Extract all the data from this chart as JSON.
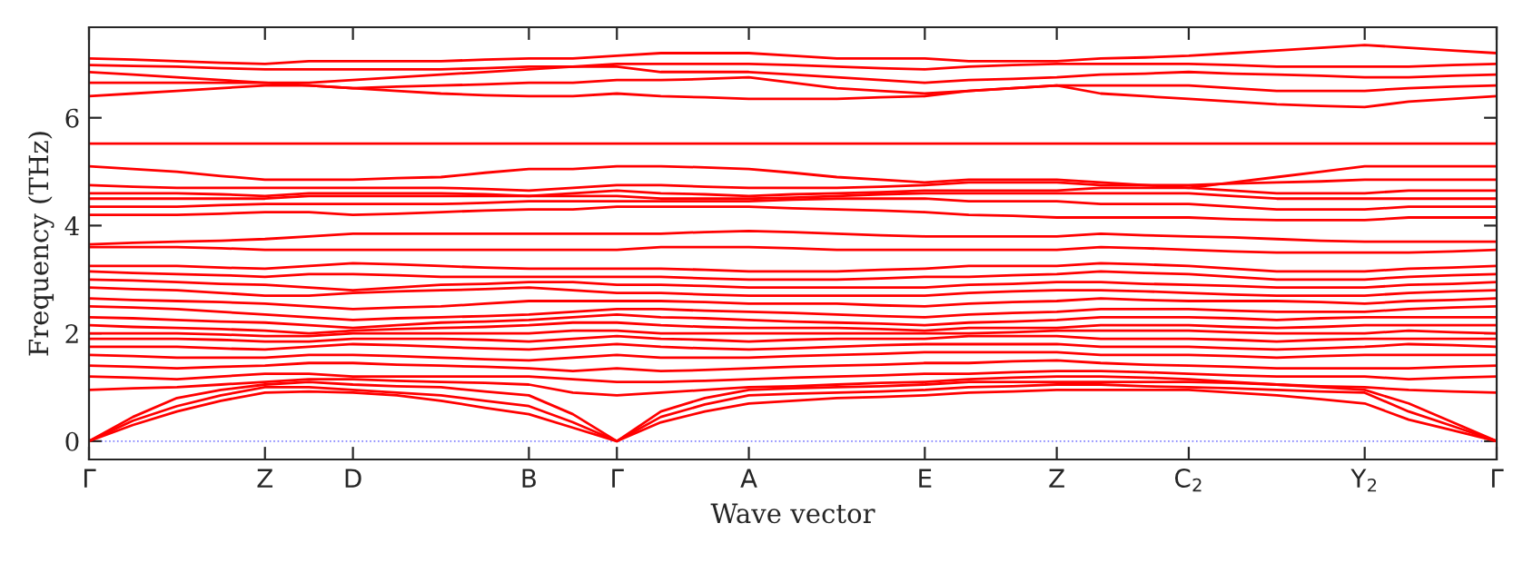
{
  "chart_data": {
    "type": "line",
    "xlabel": "Wave vector",
    "ylabel": "Frequency (THz)",
    "categories": [
      "Γ",
      null,
      null,
      null,
      "Z",
      null,
      "D",
      null,
      null,
      null,
      "B",
      null,
      "Γ",
      null,
      null,
      "A",
      null,
      null,
      null,
      "E",
      null,
      null,
      "Z",
      null,
      null,
      "C$_{2}$",
      null,
      null,
      null,
      "Y$_{2}$",
      null,
      null,
      "Γ"
    ],
    "ylim": [
      -0.34,
      7.68
    ],
    "yticks": [
      0,
      2,
      4,
      6
    ],
    "grid": false,
    "legend": false,
    "marker": "none",
    "line_style": "solid",
    "ref_lines": [
      {
        "axis": "y",
        "value": 0,
        "color": "#8080ff",
        "line_style": "dotted"
      }
    ],
    "series": [
      {
        "color": "#ff0000",
        "values": [
          0,
          0.3,
          0.55,
          0.75,
          0.9,
          0.92,
          0.9,
          0.85,
          0.75,
          0.62,
          0.5,
          0.25,
          0,
          0.35,
          0.55,
          0.7,
          0.75,
          0.8,
          0.82,
          0.85,
          0.9,
          0.92,
          0.95,
          0.95,
          0.95,
          0.95,
          0.9,
          0.85,
          0.78,
          0.7,
          0.4,
          0.2,
          0
        ]
      },
      {
        "color": "#ff0000",
        "values": [
          0,
          0.38,
          0.65,
          0.85,
          1.0,
          1.0,
          0.95,
          0.9,
          0.85,
          0.75,
          0.65,
          0.35,
          0,
          0.45,
          0.68,
          0.85,
          0.88,
          0.9,
          0.92,
          0.95,
          1.0,
          1.02,
          1.05,
          1.05,
          1.02,
          1.0,
          0.98,
          0.95,
          0.92,
          0.9,
          0.55,
          0.28,
          0
        ]
      },
      {
        "color": "#ff0000",
        "values": [
          0,
          0.45,
          0.8,
          0.95,
          1.05,
          1.1,
          1.05,
          1.02,
          1.0,
          0.92,
          0.85,
          0.5,
          0,
          0.55,
          0.8,
          0.95,
          0.98,
          1.0,
          1.02,
          1.05,
          1.1,
          1.1,
          1.1,
          1.1,
          1.1,
          1.1,
          1.08,
          1.05,
          1.0,
          0.95,
          0.7,
          0.35,
          0
        ]
      },
      {
        "color": "#ff0000",
        "values": [
          0.95,
          0.98,
          1.0,
          1.05,
          1.1,
          1.15,
          1.15,
          1.12,
          1.1,
          1.08,
          1.05,
          0.9,
          0.85,
          0.9,
          0.95,
          1.0,
          1.02,
          1.05,
          1.08,
          1.1,
          1.15,
          1.18,
          1.2,
          1.2,
          1.18,
          1.15,
          1.1,
          1.05,
          1.02,
          1.0,
          0.95,
          0.92,
          0.9
        ]
      },
      {
        "color": "#ff0000",
        "values": [
          1.2,
          1.18,
          1.15,
          1.2,
          1.25,
          1.25,
          1.2,
          1.2,
          1.2,
          1.2,
          1.2,
          1.15,
          1.1,
          1.1,
          1.12,
          1.15,
          1.18,
          1.2,
          1.22,
          1.25,
          1.25,
          1.28,
          1.3,
          1.3,
          1.28,
          1.25,
          1.22,
          1.2,
          1.2,
          1.2,
          1.15,
          1.18,
          1.2
        ]
      },
      {
        "color": "#ff0000",
        "values": [
          1.4,
          1.38,
          1.35,
          1.38,
          1.4,
          1.45,
          1.45,
          1.42,
          1.4,
          1.38,
          1.35,
          1.3,
          1.35,
          1.3,
          1.32,
          1.35,
          1.38,
          1.4,
          1.42,
          1.45,
          1.45,
          1.48,
          1.5,
          1.45,
          1.42,
          1.4,
          1.38,
          1.35,
          1.35,
          1.35,
          1.35,
          1.38,
          1.4
        ]
      },
      {
        "color": "#ff0000",
        "values": [
          1.6,
          1.58,
          1.55,
          1.55,
          1.55,
          1.6,
          1.6,
          1.58,
          1.55,
          1.52,
          1.5,
          1.55,
          1.6,
          1.55,
          1.55,
          1.55,
          1.58,
          1.6,
          1.62,
          1.65,
          1.65,
          1.65,
          1.65,
          1.6,
          1.6,
          1.6,
          1.58,
          1.55,
          1.58,
          1.6,
          1.6,
          1.6,
          1.6
        ]
      },
      {
        "color": "#ff0000",
        "values": [
          1.75,
          1.75,
          1.75,
          1.72,
          1.7,
          1.75,
          1.8,
          1.78,
          1.75,
          1.72,
          1.7,
          1.75,
          1.8,
          1.75,
          1.72,
          1.7,
          1.72,
          1.75,
          1.78,
          1.8,
          1.8,
          1.8,
          1.8,
          1.75,
          1.75,
          1.75,
          1.72,
          1.7,
          1.72,
          1.75,
          1.8,
          1.78,
          1.75
        ]
      },
      {
        "color": "#ff0000",
        "values": [
          1.9,
          1.9,
          1.9,
          1.88,
          1.85,
          1.85,
          1.9,
          1.9,
          1.9,
          1.88,
          1.85,
          1.9,
          1.95,
          1.9,
          1.88,
          1.85,
          1.88,
          1.9,
          1.9,
          1.9,
          1.95,
          1.95,
          1.95,
          1.9,
          1.9,
          1.9,
          1.88,
          1.85,
          1.88,
          1.9,
          1.9,
          1.9,
          1.9
        ]
      },
      {
        "color": "#ff0000",
        "values": [
          2.0,
          2.0,
          2.0,
          1.98,
          1.95,
          1.95,
          2.0,
          2.0,
          2.0,
          2.0,
          2.0,
          2.05,
          2.05,
          2.0,
          2.0,
          2.0,
          2.0,
          2.0,
          2.0,
          2.0,
          2.0,
          2.02,
          2.05,
          2.05,
          2.05,
          2.05,
          2.02,
          2.0,
          2.0,
          2.0,
          2.05,
          2.02,
          2.0
        ]
      },
      {
        "color": "#ff0000",
        "values": [
          2.15,
          2.12,
          2.1,
          2.08,
          2.05,
          2.0,
          2.05,
          2.08,
          2.1,
          2.12,
          2.15,
          2.2,
          2.2,
          2.15,
          2.12,
          2.1,
          2.1,
          2.1,
          2.08,
          2.05,
          2.1,
          2.1,
          2.1,
          2.15,
          2.15,
          2.15,
          2.12,
          2.1,
          2.12,
          2.15,
          2.15,
          2.15,
          2.15
        ]
      },
      {
        "color": "#ff0000",
        "values": [
          2.3,
          2.28,
          2.25,
          2.22,
          2.2,
          2.15,
          2.1,
          2.15,
          2.2,
          2.22,
          2.25,
          2.3,
          2.35,
          2.3,
          2.28,
          2.25,
          2.22,
          2.2,
          2.18,
          2.15,
          2.2,
          2.22,
          2.25,
          2.3,
          2.3,
          2.3,
          2.28,
          2.25,
          2.28,
          2.3,
          2.3,
          2.3,
          2.3
        ]
      },
      {
        "color": "#ff0000",
        "values": [
          2.5,
          2.48,
          2.45,
          2.4,
          2.35,
          2.3,
          2.25,
          2.28,
          2.3,
          2.32,
          2.35,
          2.4,
          2.45,
          2.45,
          2.42,
          2.4,
          2.38,
          2.35,
          2.32,
          2.3,
          2.35,
          2.38,
          2.4,
          2.45,
          2.45,
          2.45,
          2.42,
          2.4,
          2.4,
          2.4,
          2.45,
          2.48,
          2.5
        ]
      },
      {
        "color": "#ff0000",
        "values": [
          2.65,
          2.62,
          2.6,
          2.58,
          2.55,
          2.5,
          2.45,
          2.48,
          2.5,
          2.55,
          2.6,
          2.6,
          2.6,
          2.6,
          2.58,
          2.55,
          2.55,
          2.55,
          2.52,
          2.5,
          2.55,
          2.58,
          2.6,
          2.65,
          2.62,
          2.6,
          2.6,
          2.6,
          2.58,
          2.55,
          2.6,
          2.62,
          2.65
        ]
      },
      {
        "color": "#ff0000",
        "values": [
          2.85,
          2.82,
          2.8,
          2.75,
          2.7,
          2.7,
          2.75,
          2.78,
          2.8,
          2.82,
          2.85,
          2.8,
          2.75,
          2.75,
          2.72,
          2.7,
          2.7,
          2.7,
          2.7,
          2.7,
          2.75,
          2.78,
          2.8,
          2.8,
          2.78,
          2.75,
          2.72,
          2.7,
          2.7,
          2.7,
          2.75,
          2.78,
          2.8
        ]
      },
      {
        "color": "#ff0000",
        "values": [
          3.0,
          2.98,
          2.95,
          2.92,
          2.9,
          2.85,
          2.8,
          2.85,
          2.9,
          2.92,
          2.95,
          2.95,
          2.9,
          2.9,
          2.88,
          2.85,
          2.85,
          2.85,
          2.85,
          2.85,
          2.9,
          2.92,
          2.95,
          2.95,
          2.92,
          2.9,
          2.88,
          2.85,
          2.85,
          2.85,
          2.9,
          2.92,
          2.95
        ]
      },
      {
        "color": "#ff0000",
        "values": [
          3.15,
          3.12,
          3.1,
          3.08,
          3.05,
          3.1,
          3.1,
          3.08,
          3.05,
          3.05,
          3.05,
          3.05,
          3.05,
          3.05,
          3.02,
          3.0,
          3.0,
          3.0,
          3.02,
          3.05,
          3.05,
          3.08,
          3.1,
          3.15,
          3.12,
          3.1,
          3.05,
          3.0,
          3.0,
          3.0,
          3.05,
          3.08,
          3.1
        ]
      },
      {
        "color": "#ff0000",
        "values": [
          3.25,
          3.25,
          3.25,
          3.22,
          3.2,
          3.25,
          3.3,
          3.28,
          3.25,
          3.22,
          3.2,
          3.2,
          3.2,
          3.2,
          3.18,
          3.15,
          3.15,
          3.15,
          3.18,
          3.2,
          3.25,
          3.25,
          3.25,
          3.3,
          3.28,
          3.25,
          3.2,
          3.15,
          3.15,
          3.15,
          3.2,
          3.22,
          3.25
        ]
      },
      {
        "color": "#ff0000",
        "values": [
          3.6,
          3.6,
          3.6,
          3.58,
          3.55,
          3.55,
          3.55,
          3.55,
          3.55,
          3.55,
          3.55,
          3.55,
          3.55,
          3.6,
          3.6,
          3.6,
          3.58,
          3.55,
          3.55,
          3.55,
          3.55,
          3.55,
          3.55,
          3.6,
          3.58,
          3.55,
          3.52,
          3.5,
          3.5,
          3.5,
          3.5,
          3.52,
          3.55
        ]
      },
      {
        "color": "#ff0000",
        "values": [
          3.65,
          3.68,
          3.7,
          3.72,
          3.75,
          3.8,
          3.85,
          3.85,
          3.85,
          3.85,
          3.85,
          3.85,
          3.85,
          3.85,
          3.88,
          3.9,
          3.88,
          3.85,
          3.82,
          3.8,
          3.8,
          3.8,
          3.8,
          3.85,
          3.82,
          3.8,
          3.78,
          3.75,
          3.72,
          3.7,
          3.7,
          3.7,
          3.7
        ]
      },
      {
        "color": "#ff0000",
        "values": [
          4.2,
          4.2,
          4.2,
          4.22,
          4.25,
          4.25,
          4.2,
          4.22,
          4.25,
          4.28,
          4.3,
          4.3,
          4.35,
          4.35,
          4.35,
          4.35,
          4.32,
          4.3,
          4.28,
          4.25,
          4.2,
          4.18,
          4.15,
          4.15,
          4.15,
          4.15,
          4.12,
          4.1,
          4.1,
          4.1,
          4.15,
          4.15,
          4.15
        ]
      },
      {
        "color": "#ff0000",
        "values": [
          4.35,
          4.35,
          4.35,
          4.38,
          4.4,
          4.4,
          4.4,
          4.4,
          4.4,
          4.42,
          4.45,
          4.45,
          4.45,
          4.45,
          4.45,
          4.45,
          4.48,
          4.5,
          4.5,
          4.5,
          4.45,
          4.45,
          4.45,
          4.4,
          4.4,
          4.4,
          4.35,
          4.3,
          4.3,
          4.3,
          4.35,
          4.35,
          4.35
        ]
      },
      {
        "color": "#ff0000",
        "values": [
          4.5,
          4.5,
          4.5,
          4.5,
          4.5,
          4.55,
          4.55,
          4.55,
          4.55,
          4.55,
          4.55,
          4.55,
          4.55,
          4.5,
          4.5,
          4.5,
          4.52,
          4.55,
          4.58,
          4.6,
          4.6,
          4.6,
          4.6,
          4.6,
          4.6,
          4.6,
          4.55,
          4.5,
          4.5,
          4.5,
          4.5,
          4.5,
          4.5
        ]
      },
      {
        "color": "#ff0000",
        "values": [
          4.6,
          4.6,
          4.6,
          4.58,
          4.55,
          4.6,
          4.6,
          4.6,
          4.6,
          4.58,
          4.55,
          4.6,
          4.65,
          4.6,
          4.58,
          4.55,
          4.58,
          4.6,
          4.62,
          4.65,
          4.65,
          4.65,
          4.65,
          4.7,
          4.7,
          4.7,
          4.65,
          4.6,
          4.6,
          4.6,
          4.65,
          4.65,
          4.65
        ]
      },
      {
        "color": "#ff0000",
        "values": [
          4.75,
          4.72,
          4.7,
          4.7,
          4.7,
          4.7,
          4.7,
          4.7,
          4.7,
          4.68,
          4.65,
          4.7,
          4.75,
          4.75,
          4.72,
          4.7,
          4.7,
          4.7,
          4.72,
          4.75,
          4.8,
          4.8,
          4.8,
          4.75,
          4.75,
          4.75,
          4.78,
          4.8,
          4.82,
          4.85,
          4.85,
          4.85,
          4.85
        ]
      },
      {
        "color": "#ff0000",
        "values": [
          5.1,
          5.05,
          5.0,
          4.92,
          4.85,
          4.85,
          4.85,
          4.88,
          4.9,
          4.98,
          5.05,
          5.05,
          5.1,
          5.1,
          5.08,
          5.05,
          4.98,
          4.9,
          4.85,
          4.8,
          4.85,
          4.85,
          4.85,
          4.8,
          4.75,
          4.7,
          4.8,
          4.9,
          5.0,
          5.1,
          5.1,
          5.1,
          5.1
        ]
      },
      {
        "color": "#ff0000",
        "values": [
          5.52,
          5.52,
          5.52,
          5.52,
          5.52,
          5.52,
          5.52,
          5.52,
          5.52,
          5.52,
          5.52,
          5.52,
          5.52,
          5.52,
          5.52,
          5.52,
          5.52,
          5.52,
          5.52,
          5.52,
          5.52,
          5.52,
          5.52,
          5.52,
          5.52,
          5.52,
          5.52,
          5.52,
          5.52,
          5.52,
          5.52,
          5.52,
          5.52
        ]
      },
      {
        "color": "#ff0000",
        "values": [
          6.4,
          6.45,
          6.5,
          6.55,
          6.6,
          6.6,
          6.55,
          6.5,
          6.45,
          6.42,
          6.4,
          6.4,
          6.45,
          6.4,
          6.38,
          6.35,
          6.35,
          6.35,
          6.38,
          6.4,
          6.5,
          6.55,
          6.6,
          6.45,
          6.4,
          6.35,
          6.3,
          6.25,
          6.22,
          6.2,
          6.3,
          6.35,
          6.4
        ]
      },
      {
        "color": "#ff0000",
        "values": [
          6.65,
          6.65,
          6.65,
          6.65,
          6.65,
          6.6,
          6.55,
          6.58,
          6.6,
          6.62,
          6.65,
          6.65,
          6.7,
          6.7,
          6.72,
          6.75,
          6.65,
          6.55,
          6.5,
          6.45,
          6.5,
          6.55,
          6.6,
          6.6,
          6.6,
          6.6,
          6.55,
          6.5,
          6.5,
          6.5,
          6.55,
          6.58,
          6.6
        ]
      },
      {
        "color": "#ff0000",
        "values": [
          6.85,
          6.8,
          6.75,
          6.7,
          6.65,
          6.65,
          6.7,
          6.75,
          6.8,
          6.85,
          6.9,
          6.95,
          6.95,
          6.85,
          6.85,
          6.85,
          6.8,
          6.75,
          6.7,
          6.65,
          6.7,
          6.72,
          6.75,
          6.8,
          6.82,
          6.85,
          6.82,
          6.8,
          6.78,
          6.75,
          6.75,
          6.78,
          6.8
        ]
      },
      {
        "color": "#ff0000",
        "values": [
          6.98,
          6.96,
          6.95,
          6.92,
          6.9,
          6.9,
          6.9,
          6.9,
          6.9,
          6.92,
          6.95,
          6.95,
          7.0,
          7.0,
          7.0,
          7.0,
          6.98,
          6.95,
          6.92,
          6.9,
          6.95,
          6.98,
          7.0,
          7.0,
          7.0,
          7.0,
          6.98,
          6.95,
          6.95,
          6.95,
          6.95,
          6.98,
          7.0
        ]
      },
      {
        "color": "#ff0000",
        "values": [
          7.1,
          7.08,
          7.05,
          7.02,
          7.0,
          7.05,
          7.05,
          7.05,
          7.05,
          7.08,
          7.1,
          7.1,
          7.15,
          7.2,
          7.2,
          7.2,
          7.15,
          7.1,
          7.1,
          7.1,
          7.05,
          7.05,
          7.05,
          7.1,
          7.12,
          7.15,
          7.2,
          7.25,
          7.3,
          7.35,
          7.3,
          7.25,
          7.2
        ]
      }
    ]
  }
}
